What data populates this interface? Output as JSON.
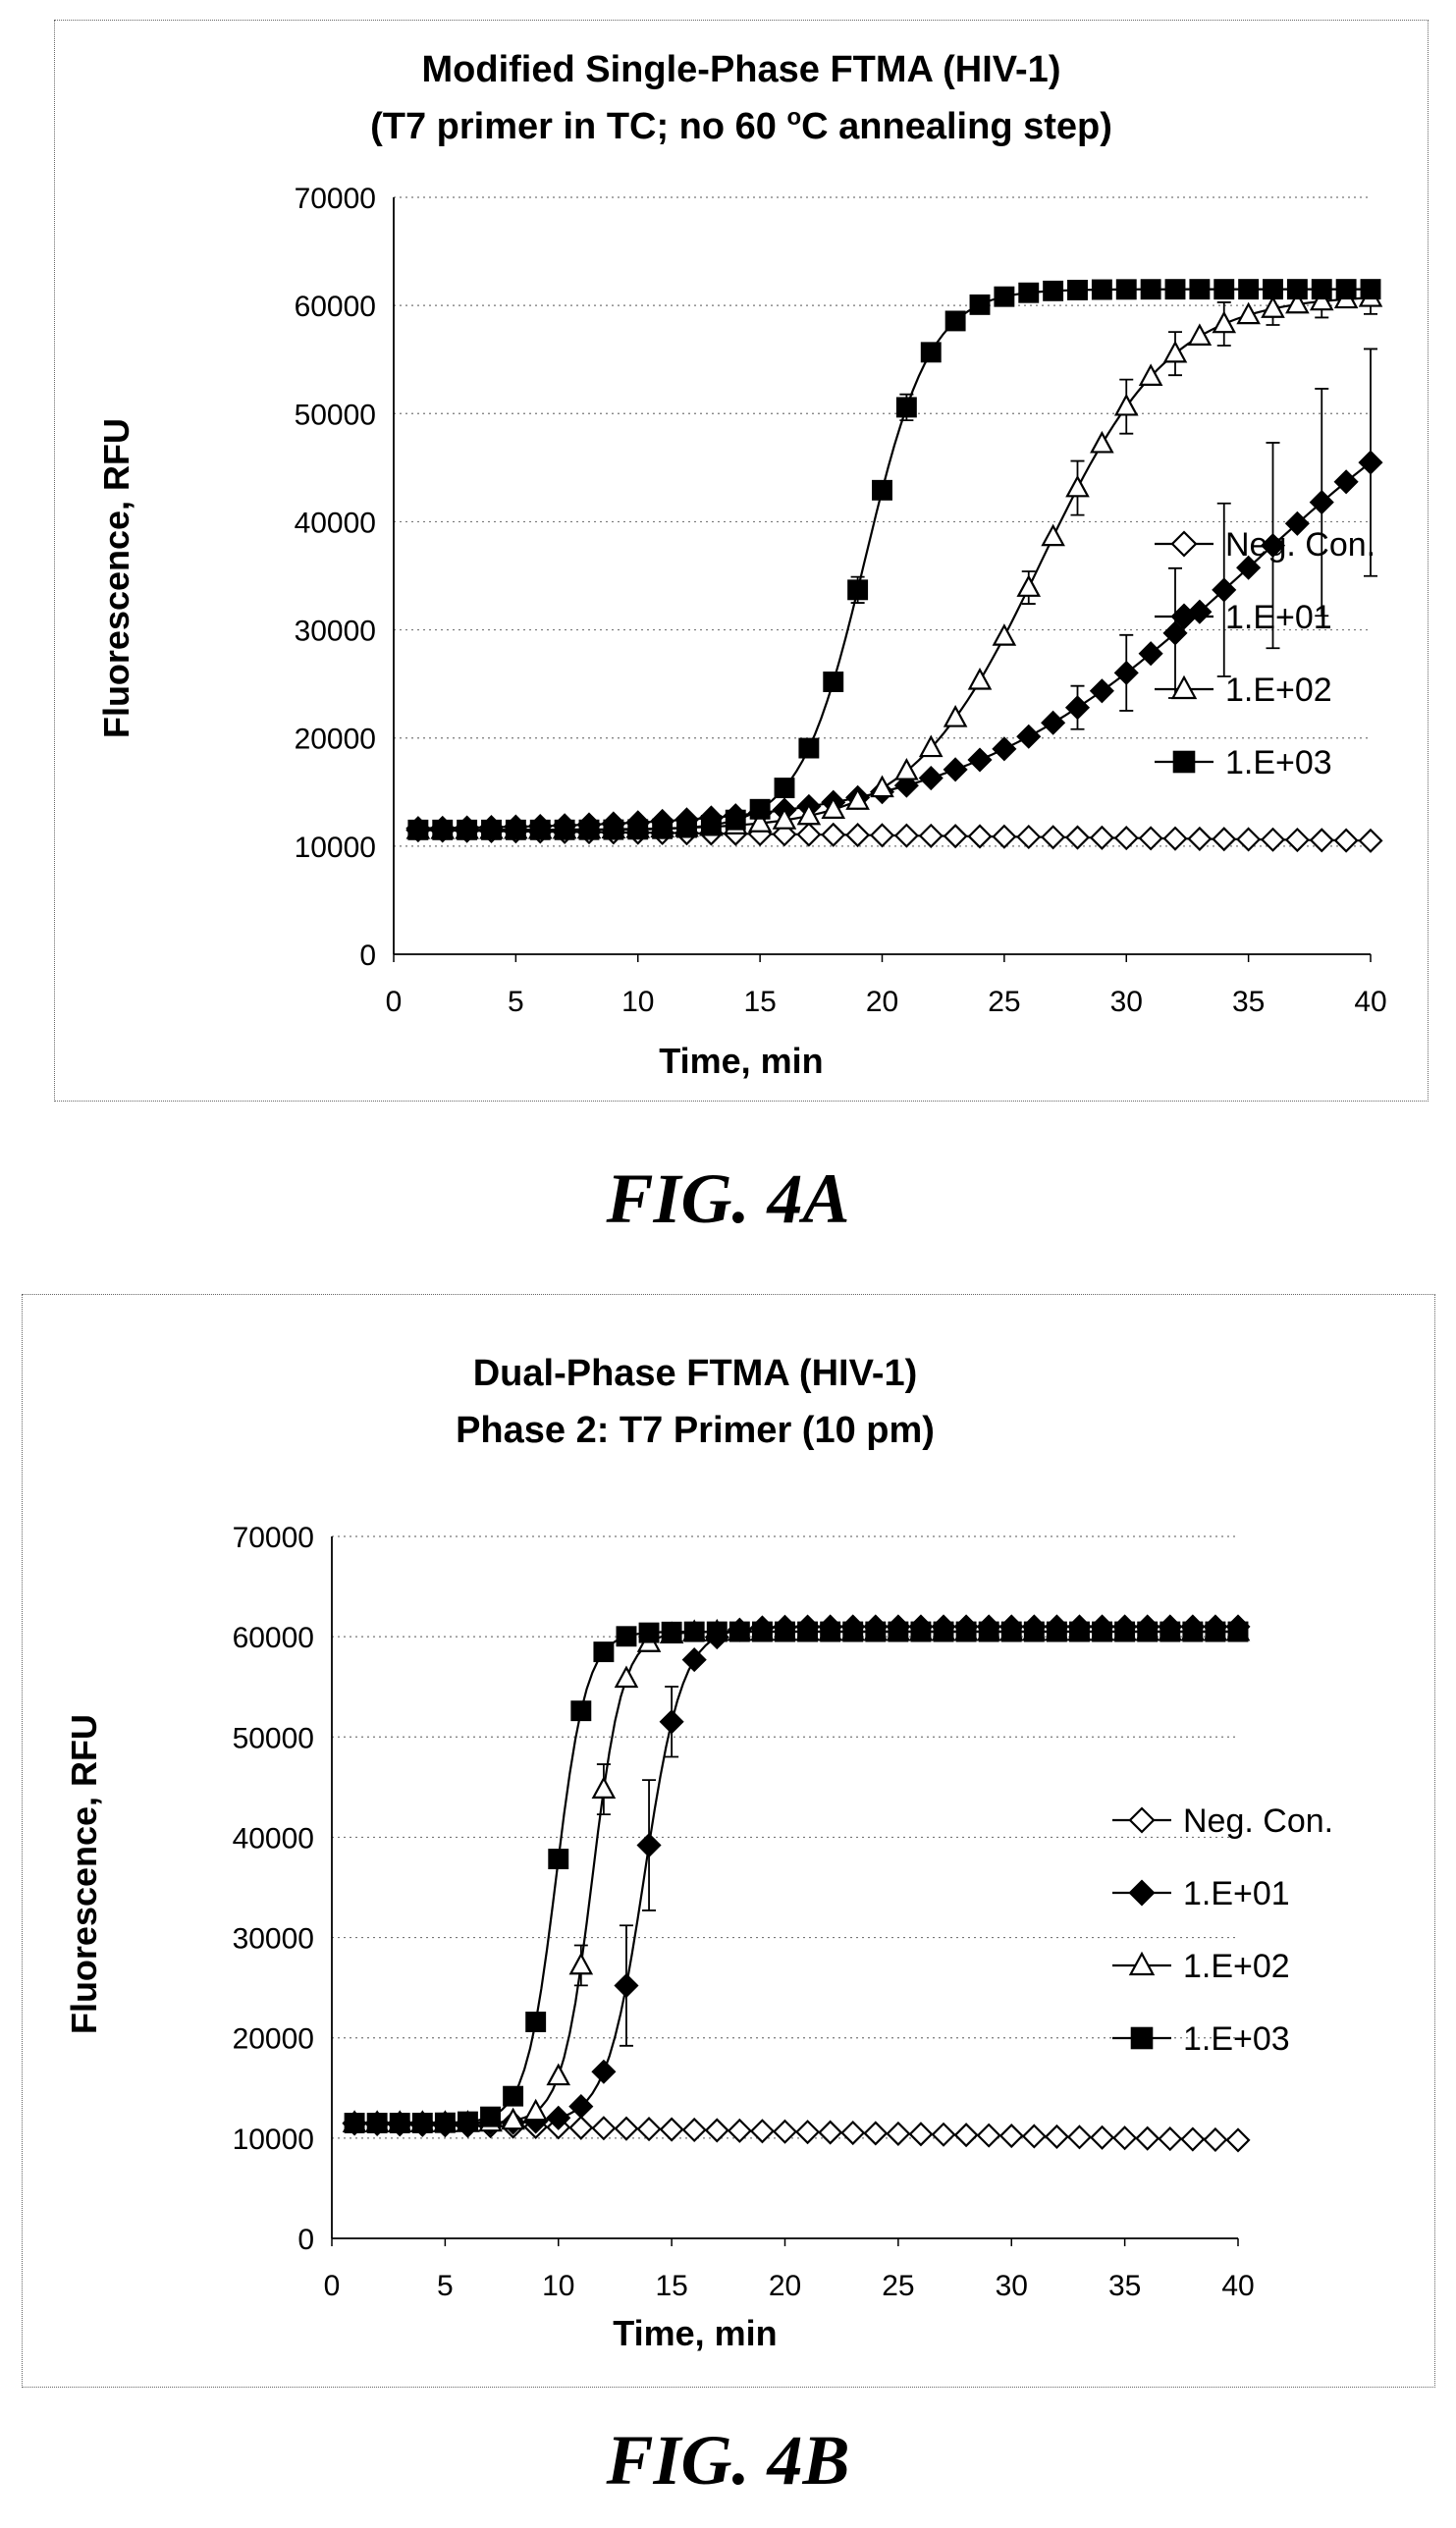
{
  "figures": {
    "a": {
      "caption": "FIG. 4A"
    },
    "b": {
      "caption": "FIG. 4B"
    }
  },
  "chart_data": [
    {
      "type": "line",
      "title": "Modified Single-Phase FTMA (HIV-1)",
      "subtitle_pre": "(T7 primer in TC; no 60 ",
      "subtitle_sup": "o",
      "subtitle_post": "C annealing step)",
      "xlabel": "Time, min",
      "ylabel": "Fluorescence, RFU",
      "xlim": [
        0,
        40
      ],
      "ylim": [
        0,
        70000
      ],
      "x_ticks": [
        "0",
        "5",
        "10",
        "15",
        "20",
        "25",
        "30",
        "35",
        "40"
      ],
      "y_ticks": [
        "0",
        "10000",
        "20000",
        "30000",
        "40000",
        "50000",
        "60000",
        "70000"
      ],
      "grid": "horizontal dashed",
      "legend_position": "right",
      "series": [
        {
          "name": "Neg. Con.",
          "marker": "open-diamond",
          "model": {
            "base": 11500,
            "top": 11500,
            "mid": 20,
            "k": 0.5,
            "drift": -1000
          },
          "err": []
        },
        {
          "name": "1.E+01",
          "marker": "filled-diamond",
          "model": {
            "base": 11500,
            "top": 60000,
            "mid": 35,
            "k": 0.17,
            "drift": 0
          },
          "err": [
            [
              28,
              2000
            ],
            [
              30,
              3500
            ],
            [
              32,
              6000
            ],
            [
              34,
              8000
            ],
            [
              36,
              9500
            ],
            [
              38,
              10500
            ],
            [
              40,
              10500
            ]
          ]
        },
        {
          "name": "1.E+02",
          "marker": "open-triangle",
          "model": {
            "base": 11500,
            "top": 61000,
            "mid": 26.5,
            "k": 0.38,
            "drift": 0
          },
          "err": [
            [
              26,
              1500
            ],
            [
              28,
              2500
            ],
            [
              30,
              2500
            ],
            [
              32,
              2000
            ],
            [
              34,
              2000
            ],
            [
              36,
              1500
            ],
            [
              38,
              1500
            ],
            [
              40,
              1500
            ]
          ]
        },
        {
          "name": "1.E+03",
          "marker": "filled-square",
          "model": {
            "base": 11500,
            "top": 61500,
            "mid": 19.3,
            "k": 0.75,
            "drift": 0
          },
          "err": [
            [
              19,
              1200
            ],
            [
              21,
              1200
            ]
          ]
        }
      ]
    },
    {
      "type": "line",
      "title": "Dual-Phase FTMA (HIV-1)",
      "subtitle_pre": "Phase 2: T7 Primer (10 pm)",
      "subtitle_sup": "",
      "subtitle_post": "",
      "xlabel": "Time, min",
      "ylabel": "Fluorescence, RFU",
      "xlim": [
        0,
        40
      ],
      "ylim": [
        0,
        70000
      ],
      "x_ticks": [
        "0",
        "5",
        "10",
        "15",
        "20",
        "25",
        "30",
        "35",
        "40"
      ],
      "y_ticks": [
        "0",
        "10000",
        "20000",
        "30000",
        "40000",
        "50000",
        "60000",
        "70000"
      ],
      "grid": "horizontal dashed",
      "legend_position": "right",
      "series": [
        {
          "name": "Neg. Con.",
          "marker": "open-diamond",
          "model": {
            "base": 11500,
            "top": 11500,
            "mid": 20,
            "k": 0.5,
            "drift": -1700
          },
          "err": []
        },
        {
          "name": "1.E+01",
          "marker": "filled-diamond",
          "model": {
            "base": 11500,
            "top": 61000,
            "mid": 13.8,
            "k": 1.2,
            "drift": 0
          },
          "err": [
            [
              13,
              6000
            ],
            [
              14,
              6500
            ],
            [
              15,
              3500
            ]
          ]
        },
        {
          "name": "1.E+02",
          "marker": "open-triangle",
          "model": {
            "base": 11500,
            "top": 60500,
            "mid": 11.5,
            "k": 1.5,
            "drift": 0
          },
          "err": [
            [
              11,
              2000
            ],
            [
              12,
              2500
            ]
          ]
        },
        {
          "name": "1.E+03",
          "marker": "filled-square",
          "model": {
            "base": 11500,
            "top": 60500,
            "mid": 9.9,
            "k": 1.5,
            "drift": 0
          },
          "err": []
        }
      ]
    }
  ]
}
